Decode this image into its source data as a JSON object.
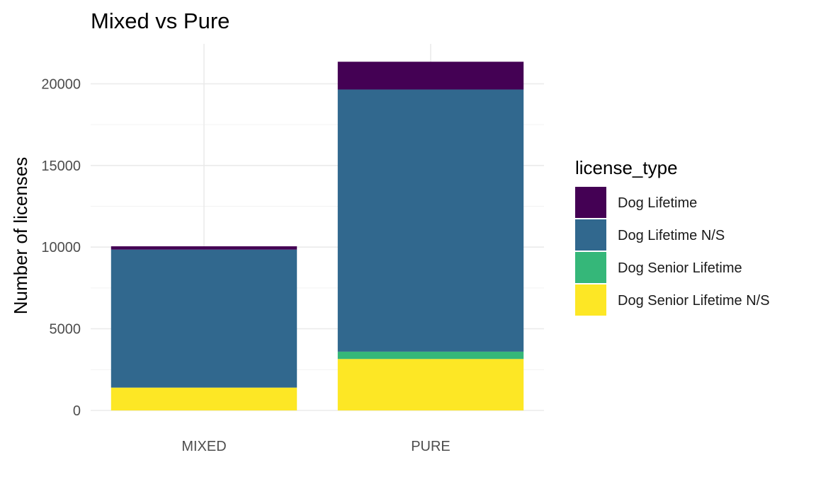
{
  "chart_data": {
    "type": "bar",
    "stacked": true,
    "title": "Mixed vs Pure",
    "xlabel": "",
    "ylabel": "Number of licenses",
    "categories": [
      "MIXED",
      "PURE"
    ],
    "series": [
      {
        "name": "Dog Lifetime",
        "color": "#440154",
        "values": [
          200,
          1700
        ]
      },
      {
        "name": "Dog Lifetime N/S",
        "color": "#31688E",
        "values": [
          8450,
          16050
        ]
      },
      {
        "name": "Dog Senior Lifetime",
        "color": "#35B779",
        "values": [
          0,
          450
        ]
      },
      {
        "name": "Dog Senior Lifetime N/S",
        "color": "#FDE725",
        "values": [
          1400,
          3150
        ]
      }
    ],
    "ylim": [
      0,
      22000
    ],
    "yticks": [
      0,
      5000,
      10000,
      15000,
      20000
    ],
    "ytick_labels": [
      "0",
      "5000",
      "10000",
      "15000",
      "20000"
    ],
    "grid": true,
    "legend": {
      "title": "license_type",
      "position": "right"
    }
  }
}
